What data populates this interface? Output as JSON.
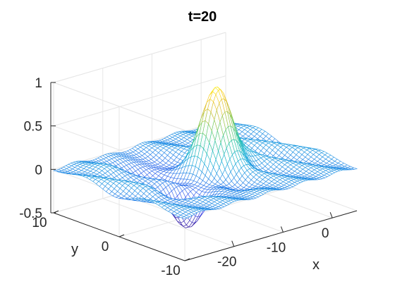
{
  "chart_data": {
    "type": "surface",
    "title": "t=20",
    "xlabel": "x",
    "ylabel": "y",
    "zlabel": "",
    "xlim": [
      -30,
      5
    ],
    "ylim": [
      -10,
      10
    ],
    "zlim": [
      -0.5,
      1
    ],
    "xticks": [
      -20,
      -10,
      0
    ],
    "xtick_labels": [
      "-20",
      "-10",
      "0"
    ],
    "yticks": [
      -10,
      0,
      10
    ],
    "ytick_labels": [
      "-10",
      "0",
      "10"
    ],
    "zticks": [
      -0.5,
      0,
      0.5,
      1
    ],
    "ztick_labels": [
      "-0.5",
      "0",
      "0.5",
      "1"
    ],
    "grid": true,
    "colormap": "parula",
    "colors": {
      "low": "#3e26a8",
      "mid": "#1ab0d8",
      "high": "#f9fb0e"
    },
    "surface": {
      "peak": {
        "x": -10,
        "y": 0,
        "z": 0.93
      },
      "trough": {
        "x": -20,
        "y": -3,
        "z": -0.4
      },
      "min_z": -0.4,
      "max_z": 0.93
    }
  }
}
